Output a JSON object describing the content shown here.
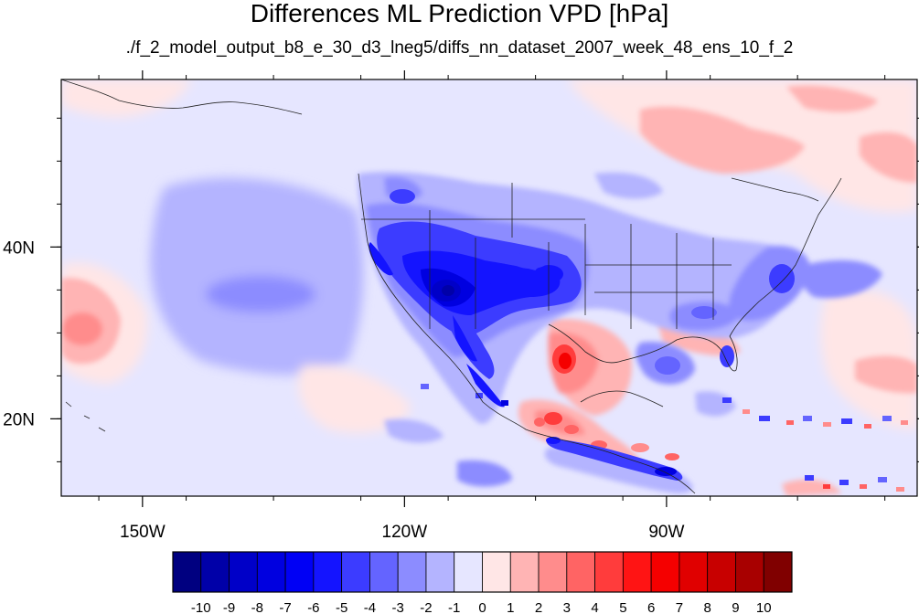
{
  "title": "Differences ML Prediction VPD [hPa]",
  "subtitle": "./f_2_model_output_b8_e_30_d3_lneg5/diffs_nn_dataset_2007_week_48_ens_10_f_2",
  "map": {
    "lon_range": [
      -159.3,
      -61.3
    ],
    "lat_range": [
      11.0,
      59.5
    ],
    "x_ticks": [
      {
        "lon": -150,
        "label": "150W"
      },
      {
        "lon": -120,
        "label": "120W"
      },
      {
        "lon": -90,
        "label": "90W"
      }
    ],
    "y_ticks": [
      {
        "lat": 40,
        "label": "40N"
      },
      {
        "lat": 20,
        "label": "20N"
      }
    ]
  },
  "colorbar": {
    "labels": [
      "-10",
      "-9",
      "-8",
      "-7",
      "-6",
      "-5",
      "-4",
      "-3",
      "-2",
      "-1",
      "0",
      "1",
      "2",
      "3",
      "4",
      "5",
      "6",
      "7",
      "8",
      "9",
      "10"
    ],
    "colors": [
      "#000080",
      "#0000a8",
      "#0000c8",
      "#0000e0",
      "#0000f5",
      "#1414ff",
      "#3c3cff",
      "#6464ff",
      "#8c8cff",
      "#b4b4ff",
      "#e6e6ff",
      "#ffe6e6",
      "#ffb4b4",
      "#ff8c8c",
      "#ff6464",
      "#ff3c3c",
      "#ff1414",
      "#f50000",
      "#e00000",
      "#c80000",
      "#a80000",
      "#800000"
    ]
  }
}
